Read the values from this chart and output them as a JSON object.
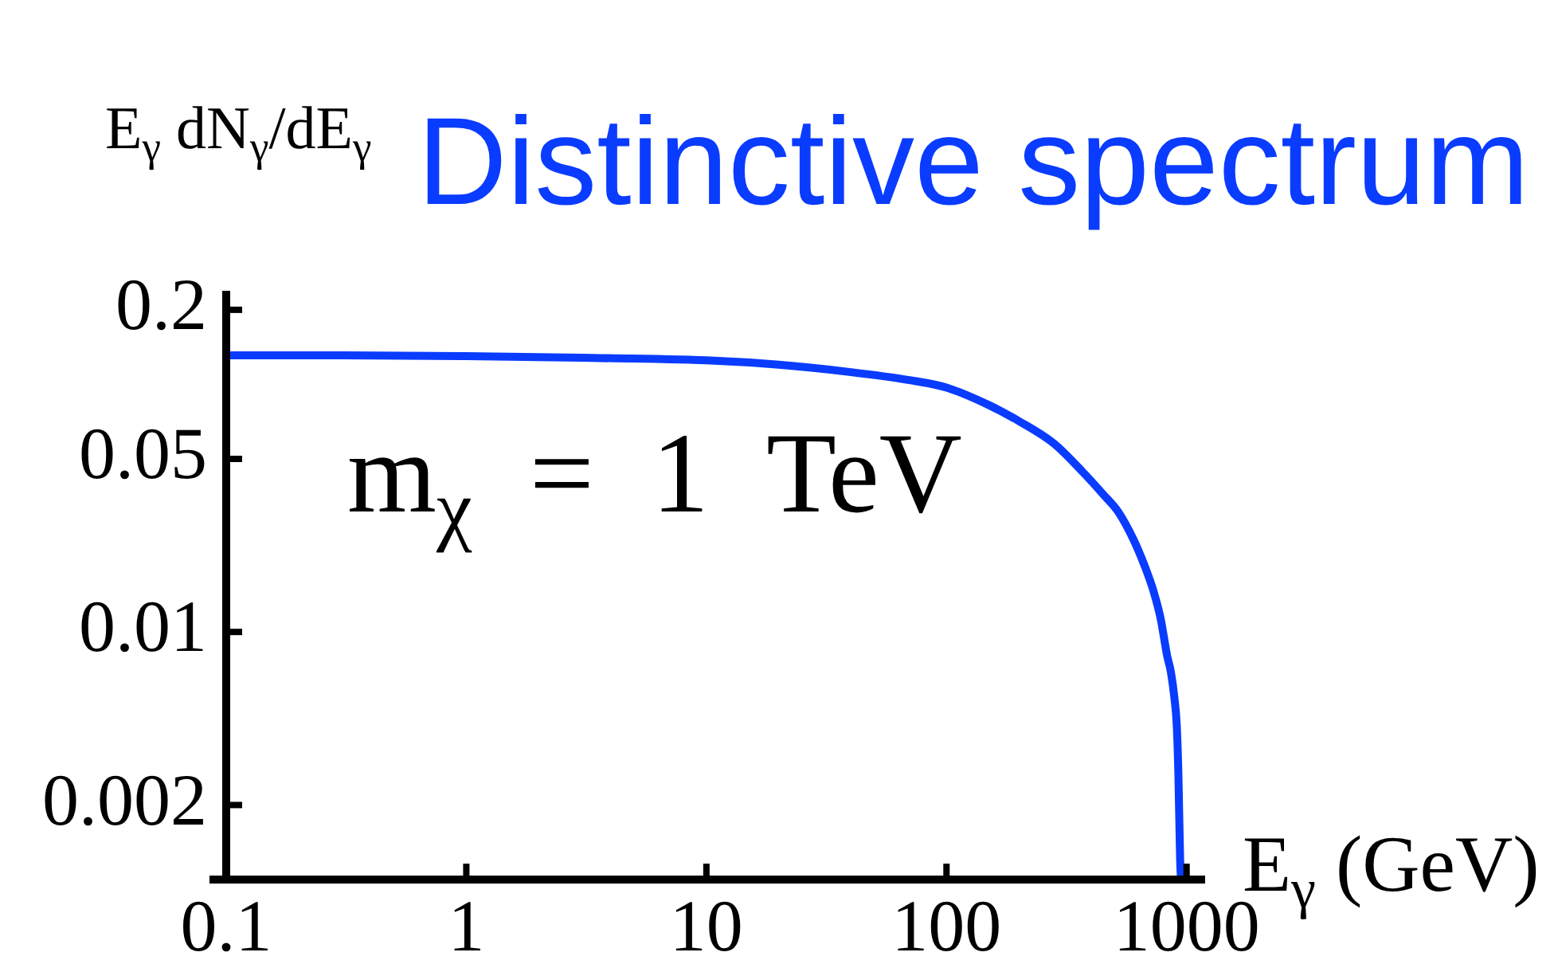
{
  "chart_data": {
    "type": "line",
    "title": "Distinctive spectrum",
    "xlabel": "E$_{γ}$ (GeV)",
    "ylabel": "E$_{γ}$ dN$_{γ}$/dE$_{γ}$",
    "annotations": [
      "m$_{χ}$ = 1 TeV"
    ],
    "x": [
      0.1,
      0.3,
      1,
      3,
      10,
      20,
      40,
      70,
      100,
      150,
      200,
      280,
      370,
      450,
      520,
      600,
      670,
      730,
      780,
      830,
      860,
      890,
      910,
      925,
      940,
      948
    ],
    "series": [
      {
        "color": "#0a3cff",
        "values": [
          0.131,
          0.131,
          0.13,
          0.128,
          0.125,
          0.12,
          0.112,
          0.104,
          0.097,
          0.0825,
          0.0711,
          0.0577,
          0.0442,
          0.0359,
          0.0305,
          0.0237,
          0.0184,
          0.0145,
          0.0113,
          0.008,
          0.0069,
          0.0054,
          0.0042,
          0.0026,
          0.0012,
          0.001
        ]
      }
    ],
    "log": "xy",
    "xlim": [
      0.1,
      1150
    ],
    "ylim": [
      0.001,
      0.23
    ],
    "xticks": [
      0.1,
      1,
      10,
      100,
      1000
    ],
    "yticks": [
      0.002,
      0.01,
      0.05,
      0.2
    ],
    "marker": "none",
    "line_style": "solid"
  }
}
